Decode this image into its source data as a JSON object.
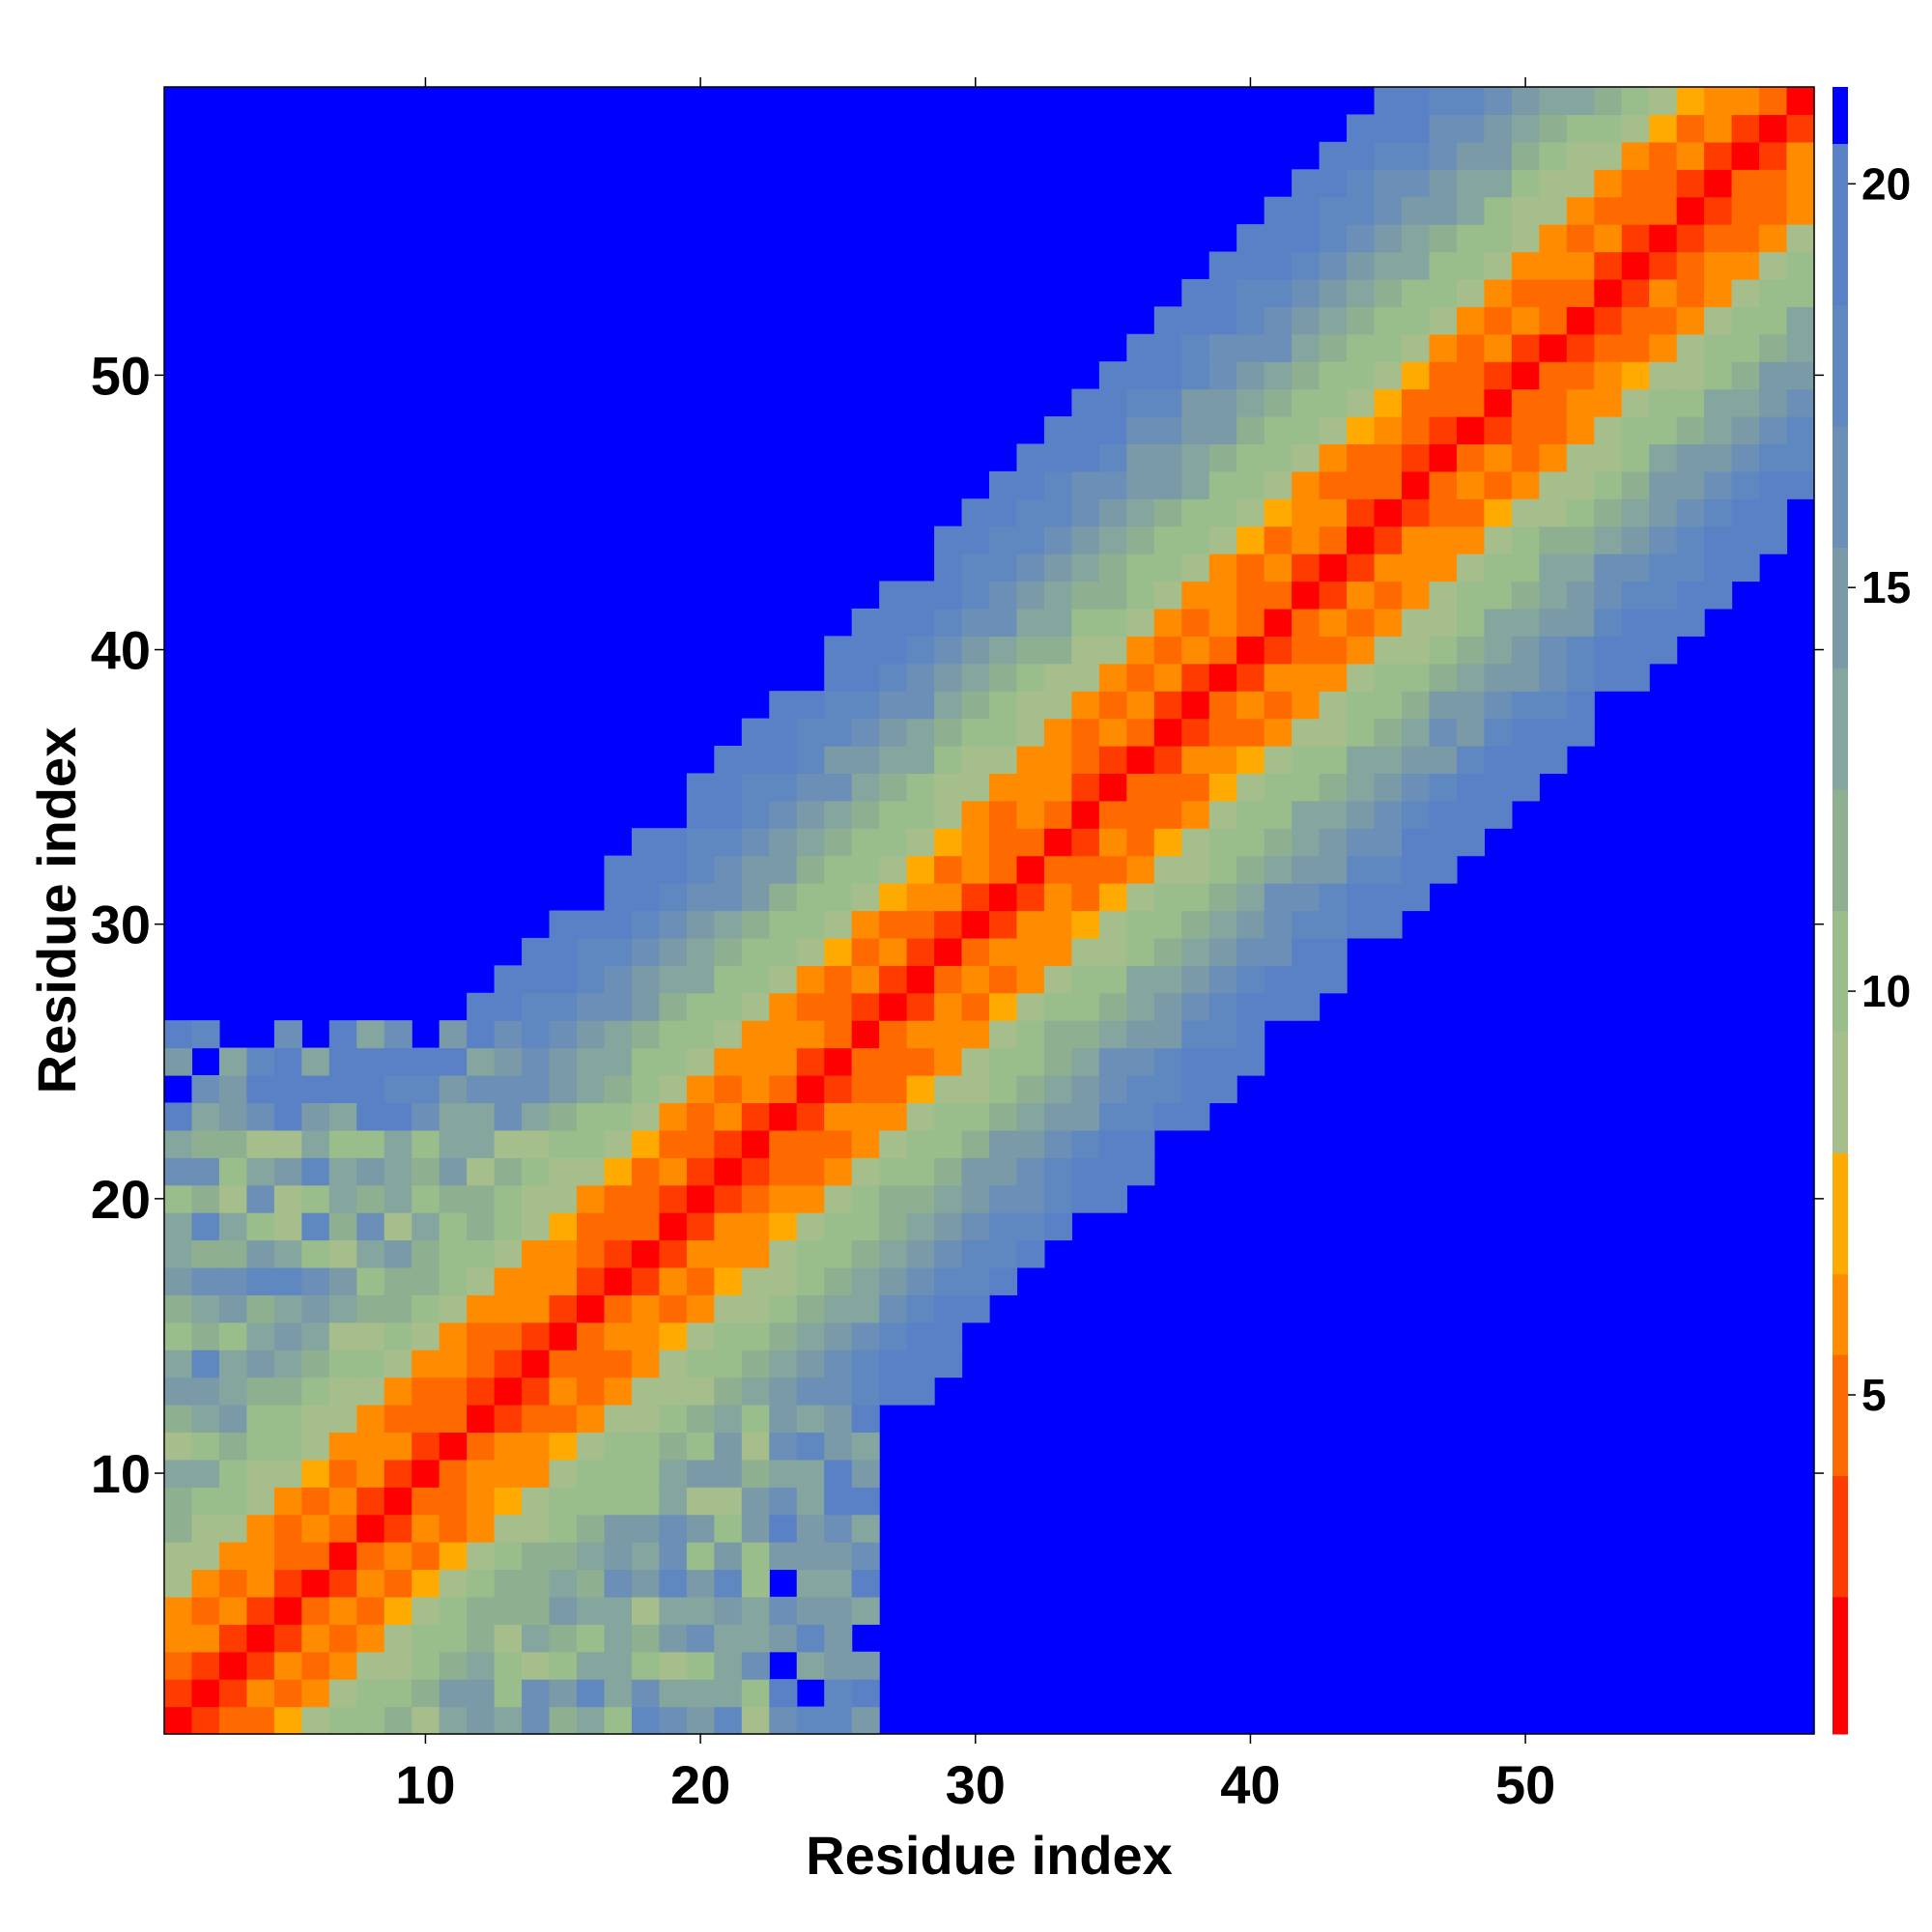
{
  "chart_data": {
    "type": "heatmap",
    "title": "",
    "xlabel": "Residue index",
    "ylabel": "Residue index",
    "n_residues": 60,
    "x_range": [
      0.5,
      60.5
    ],
    "y_range": [
      0.5,
      60.5
    ],
    "x_ticks": [
      10,
      20,
      30,
      40,
      50
    ],
    "y_ticks": [
      10,
      20,
      30,
      40,
      50
    ],
    "colorbar": {
      "range": [
        0.8,
        21.2
      ],
      "ticks": [
        5,
        10,
        15,
        20
      ],
      "levels": [
        {
          "max": 2.5,
          "color": "#ff0000"
        },
        {
          "max": 4.0,
          "color": "#ff3c00"
        },
        {
          "max": 5.5,
          "color": "#ff6a00"
        },
        {
          "max": 6.5,
          "color": "#ff8c00"
        },
        {
          "max": 8.0,
          "color": "#ffaa00"
        },
        {
          "max": 9.5,
          "color": "#a6be8c"
        },
        {
          "max": 11.0,
          "color": "#9abd8c"
        },
        {
          "max": 12.5,
          "color": "#8fb090"
        },
        {
          "max": 14.0,
          "color": "#84a69e"
        },
        {
          "max": 15.5,
          "color": "#7a9aa8"
        },
        {
          "max": 17.0,
          "color": "#6b8fb6"
        },
        {
          "max": 18.5,
          "color": "#6088c0"
        },
        {
          "max": 20.5,
          "color": "#5a80c6"
        },
        {
          "max": 99,
          "color": "#0000ff"
        }
      ]
    },
    "distance_model": {
      "band_center_offset": 0,
      "cutoff": 21,
      "cutoff_value": 21,
      "helix_region_max": 22,
      "helix_offsets": [
        {
          "d": 0,
          "v": 1.0
        },
        {
          "d": 1,
          "v": 3.8
        },
        {
          "d": 2,
          "v": 5.5
        },
        {
          "d": 3,
          "v": 5.2
        },
        {
          "d": 4,
          "v": 6.2
        },
        {
          "d": 5,
          "v": 8.7
        },
        {
          "d": 6,
          "v": 9.8
        },
        {
          "d": 7,
          "v": 10.5
        },
        {
          "d": 8,
          "v": 12.0
        },
        {
          "d": 9,
          "v": 13.5
        },
        {
          "d": 10,
          "v": 15.0
        },
        {
          "d": 11,
          "v": 16.0
        },
        {
          "d": 12,
          "v": 17.5
        },
        {
          "d": 13,
          "v": 18.5
        },
        {
          "d": 14,
          "v": 19.5
        },
        {
          "d": 15,
          "v": 20.2
        }
      ]
    }
  }
}
